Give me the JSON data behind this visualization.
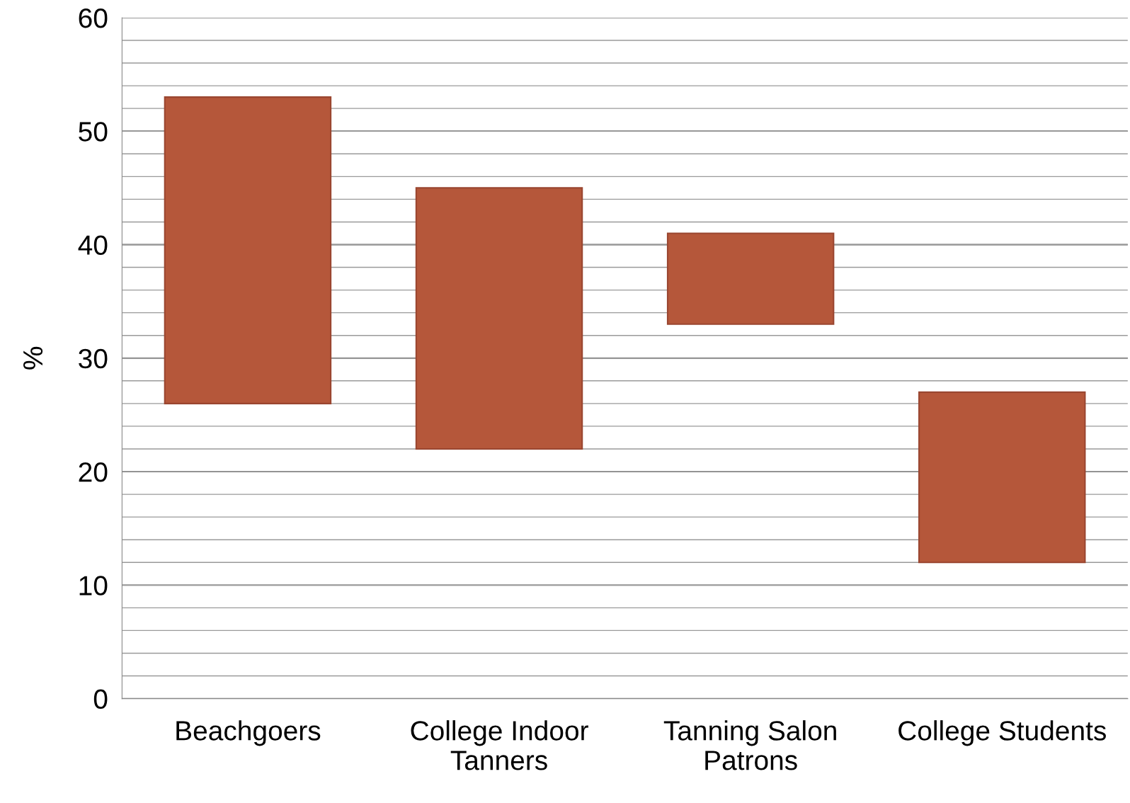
{
  "chart_data": {
    "type": "bar",
    "ylabel": "%",
    "categories": [
      "Beachgoers",
      "College Indoor\nTanners",
      "Tanning Salon\nPatrons",
      "College Students"
    ],
    "base": [
      26,
      22,
      33,
      12
    ],
    "values": [
      27,
      23,
      8,
      15
    ],
    "color": "#b5573a",
    "ylim": [
      0,
      60
    ],
    "yticks": [
      0,
      {
        "value": 2,
        "label": null
      },
      {
        "value": 4,
        "label": null
      },
      {
        "value": 6,
        "label": null
      },
      {
        "value": 8,
        "label": null
      },
      10,
      {
        "value": 12,
        "label": null
      },
      {
        "value": 14,
        "label": null
      },
      {
        "value": 16,
        "label": null
      },
      {
        "value": 18,
        "label": null
      },
      20,
      {
        "value": 22,
        "label": null
      },
      {
        "value": 24,
        "label": null
      },
      {
        "value": 26,
        "label": null
      },
      {
        "value": 28,
        "label": null
      },
      30,
      {
        "value": 32,
        "label": null
      },
      {
        "value": 34,
        "label": null
      },
      {
        "value": 36,
        "label": null
      },
      {
        "value": 38,
        "label": null
      },
      40,
      {
        "value": 42,
        "label": null
      },
      {
        "value": 44,
        "label": null
      },
      {
        "value": 46,
        "label": null
      },
      {
        "value": 48,
        "label": null
      },
      50,
      {
        "value": 52,
        "label": null
      },
      {
        "value": 54,
        "label": null
      },
      {
        "value": 56,
        "label": null
      },
      {
        "value": 58,
        "label": null
      },
      60
    ],
    "grid": "y",
    "legend": false
  }
}
